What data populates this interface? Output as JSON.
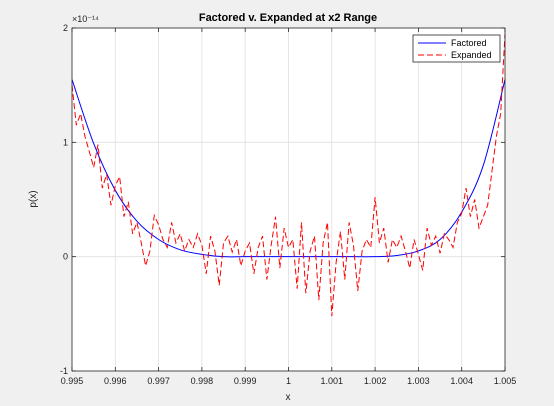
{
  "chart_data": {
    "type": "line",
    "title": "Factored v. Expanded at x2 Range",
    "xlabel": "x",
    "ylabel": "p(x)",
    "y_exponent_label": "×10⁻¹⁴",
    "xlim": [
      0.995,
      1.005
    ],
    "ylim": [
      -1,
      2
    ],
    "x_ticks": [
      0.995,
      0.996,
      0.997,
      0.998,
      0.999,
      1,
      1.001,
      1.002,
      1.003,
      1.004,
      1.005
    ],
    "x_tick_labels": [
      "0.995",
      "0.996",
      "0.997",
      "0.998",
      "0.999",
      "1",
      "1.001",
      "1.002",
      "1.003",
      "1.004",
      "1.005"
    ],
    "y_ticks": [
      -1,
      0,
      1,
      2
    ],
    "y_tick_labels": [
      "-1",
      "0",
      "1",
      "2"
    ],
    "grid": true,
    "legend_position": "top-right",
    "colors": {
      "factored": "#0000ff",
      "expanded": "#ff0000"
    },
    "series": [
      {
        "name": "Factored",
        "style": "solid",
        "x": [
          0.995,
          0.9955,
          0.996,
          0.9965,
          0.997,
          0.9975,
          0.998,
          0.9985,
          0.999,
          0.9995,
          1.0,
          1.0005,
          1.001,
          1.0015,
          1.002,
          1.0025,
          1.003,
          1.0035,
          1.004,
          1.0045,
          1.005
        ],
        "y": [
          1.55,
          0.99,
          0.58,
          0.31,
          0.15,
          0.06,
          0.02,
          0.0,
          0.0,
          0.0,
          0.0,
          0.0,
          0.0,
          0.0,
          0.0,
          0.01,
          0.05,
          0.15,
          0.39,
          0.8,
          1.55
        ]
      },
      {
        "name": "Expanded",
        "style": "dashed",
        "x": [
          0.995,
          0.9951,
          0.9952,
          0.9953,
          0.9954,
          0.9955,
          0.9956,
          0.9957,
          0.9958,
          0.9959,
          0.996,
          0.9961,
          0.9962,
          0.9963,
          0.9964,
          0.9965,
          0.9966,
          0.9967,
          0.9968,
          0.9969,
          0.997,
          0.9971,
          0.9972,
          0.9973,
          0.9974,
          0.9975,
          0.9976,
          0.9977,
          0.9978,
          0.9979,
          0.998,
          0.9981,
          0.9982,
          0.9983,
          0.9984,
          0.9985,
          0.9986,
          0.9987,
          0.9988,
          0.9989,
          0.999,
          0.9991,
          0.9992,
          0.9993,
          0.9994,
          0.9995,
          0.9996,
          0.9997,
          0.9998,
          0.9999,
          1.0,
          1.0001,
          1.0002,
          1.0003,
          1.0004,
          1.0005,
          1.0006,
          1.0007,
          1.0008,
          1.0009,
          1.001,
          1.0011,
          1.0012,
          1.0013,
          1.0014,
          1.0015,
          1.0016,
          1.0017,
          1.0018,
          1.0019,
          1.002,
          1.0021,
          1.0022,
          1.0023,
          1.0024,
          1.0025,
          1.0026,
          1.0027,
          1.0028,
          1.0029,
          1.003,
          1.0031,
          1.0032,
          1.0033,
          1.0034,
          1.0035,
          1.0036,
          1.0037,
          1.0038,
          1.0039,
          1.004,
          1.0041,
          1.0042,
          1.0043,
          1.0044,
          1.0045,
          1.0046,
          1.0047,
          1.0048,
          1.0049,
          1.005
        ],
        "y": [
          1.5,
          1.15,
          1.25,
          1.05,
          0.92,
          0.78,
          0.98,
          0.6,
          0.72,
          0.45,
          0.62,
          0.7,
          0.35,
          0.48,
          0.2,
          0.3,
          0.12,
          -0.08,
          0.05,
          0.36,
          0.28,
          0.15,
          0.08,
          0.3,
          0.12,
          0.2,
          0.05,
          0.15,
          0.08,
          0.2,
          0.1,
          -0.15,
          0.18,
          0.05,
          -0.25,
          0.12,
          0.18,
          0.04,
          0.15,
          -0.08,
          0.05,
          0.12,
          -0.15,
          0.08,
          0.18,
          -0.2,
          0.1,
          0.35,
          -0.1,
          0.25,
          0.08,
          0.15,
          -0.28,
          0.3,
          -0.32,
          0.05,
          0.18,
          -0.38,
          0.12,
          0.3,
          -0.52,
          -0.05,
          0.22,
          -0.2,
          0.3,
          0.1,
          -0.3,
          0.05,
          0.15,
          0.08,
          0.52,
          0.12,
          0.25,
          -0.05,
          0.15,
          0.08,
          0.18,
          0.05,
          -0.1,
          0.15,
          0.02,
          -0.12,
          0.25,
          0.1,
          0.18,
          0.03,
          0.2,
          0.15,
          0.08,
          0.3,
          0.38,
          0.6,
          0.35,
          0.5,
          0.25,
          0.35,
          0.45,
          0.75,
          1.05,
          1.25,
          1.95
        ]
      }
    ]
  }
}
